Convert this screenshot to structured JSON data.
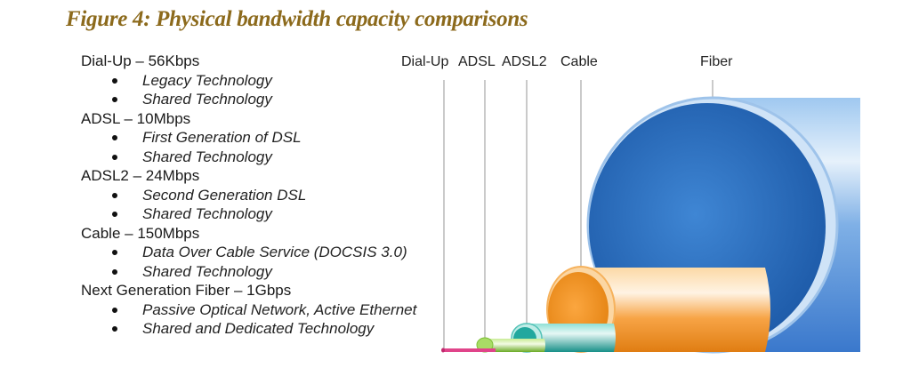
{
  "figure": {
    "title": "Figure 4: Physical bandwidth capacity comparisons"
  },
  "technologies": [
    {
      "heading": "Dial-Up – 56Kbps",
      "bullets": [
        "Legacy Technology",
        "Shared Technology"
      ]
    },
    {
      "heading": "ADSL – 10Mbps",
      "bullets": [
        "First Generation of DSL",
        "Shared Technology"
      ]
    },
    {
      "heading": "ADSL2 – 24Mbps",
      "bullets": [
        "Second Generation DSL",
        "Shared Technology"
      ]
    },
    {
      "heading": "Cable – 150Mbps",
      "bullets": [
        "Data Over Cable Service (DOCSIS 3.0)",
        "Shared Technology"
      ]
    },
    {
      "heading": "Next Generation Fiber – 1Gbps",
      "bullets": [
        "Passive Optical Network, Active Ethernet",
        "Shared and Dedicated Technology"
      ]
    }
  ],
  "pipes": {
    "labels": [
      "Dial-Up",
      "ADSL",
      "ADSL2",
      "Cable",
      "Fiber"
    ],
    "colors": {
      "dialup": "#e0448a",
      "adsl": "#8cc63f",
      "adsl2": "#2aa9a0",
      "cable": "#f7941d",
      "fiber": "#3c78c8"
    }
  }
}
